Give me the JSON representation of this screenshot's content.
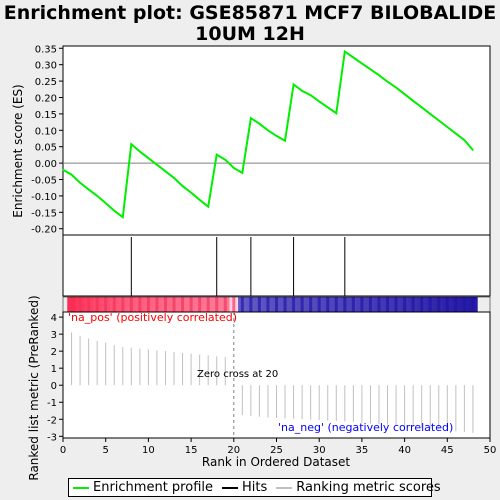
{
  "title": {
    "line1": "Enrichment plot: GSE85871 MCF7 BILOBALIDE",
    "line2": "10UM 12H"
  },
  "colors": {
    "enrichment": "#00ee00",
    "hits": "#000000",
    "ranking": "#c0c0c0",
    "pos_label": "#ff0000",
    "neg_label": "#0000ff",
    "zero_line": "#808080"
  },
  "chart_data": [
    {
      "type": "line",
      "panel": "enrichment-score",
      "ylabel": "Enrichment score (ES)",
      "xlim": [
        0,
        50
      ],
      "ylim": [
        -0.21,
        0.36
      ],
      "yticks": [
        "0.35",
        "0.30",
        "0.25",
        "0.20",
        "0.15",
        "0.10",
        "0.05",
        "0.00",
        "-0.05",
        "-0.10",
        "-0.15",
        "-0.20"
      ],
      "ytick_values": [
        0.35,
        0.3,
        0.25,
        0.2,
        0.15,
        0.1,
        0.05,
        0.0,
        -0.05,
        -0.1,
        -0.15,
        -0.2
      ],
      "series": [
        {
          "name": "Enrichment profile",
          "x": [
            0,
            1,
            2,
            3,
            4,
            5,
            6,
            7,
            8,
            9,
            10,
            11,
            12,
            13,
            14,
            15,
            16,
            17,
            18,
            19,
            20,
            21,
            22,
            23,
            24,
            25,
            26,
            27,
            28,
            29,
            30,
            31,
            32,
            33,
            34,
            35,
            36,
            37,
            38,
            39,
            40,
            41,
            42,
            43,
            44,
            45,
            46,
            47,
            48
          ],
          "values": [
            -0.02,
            -0.035,
            -0.06,
            -0.08,
            -0.1,
            -0.122,
            -0.145,
            -0.165,
            0.058,
            0.035,
            0.015,
            -0.005,
            -0.025,
            -0.045,
            -0.07,
            -0.09,
            -0.112,
            -0.133,
            0.026,
            0.01,
            -0.015,
            -0.03,
            0.137,
            0.12,
            0.1,
            0.083,
            0.068,
            0.24,
            0.22,
            0.207,
            0.188,
            0.17,
            0.152,
            0.34,
            0.322,
            0.304,
            0.286,
            0.268,
            0.248,
            0.23,
            0.21,
            0.19,
            0.17,
            0.15,
            0.13,
            0.11,
            0.09,
            0.07,
            0.04
          ]
        }
      ],
      "hits": [
        8,
        18,
        22,
        27,
        33
      ]
    },
    {
      "type": "bar",
      "panel": "ranked-list-metric",
      "xlabel": "Rank in Ordered Dataset",
      "ylabel": "Ranked list metric (PreRanked)",
      "xlim": [
        0,
        50
      ],
      "ylim": [
        -3.1,
        4.3
      ],
      "xticks": [
        "0",
        "5",
        "10",
        "15",
        "20",
        "25",
        "30",
        "35",
        "40",
        "45",
        "50"
      ],
      "xtick_values": [
        0,
        5,
        10,
        15,
        20,
        25,
        30,
        35,
        40,
        45,
        50
      ],
      "yticks": [
        "4",
        "3",
        "2",
        "1",
        "0",
        "-1",
        "-2",
        "-3"
      ],
      "ytick_values": [
        4,
        3,
        2,
        1,
        0,
        -1,
        -2,
        -3
      ],
      "x": [
        1,
        2,
        3,
        4,
        5,
        6,
        7,
        8,
        9,
        10,
        11,
        12,
        13,
        14,
        15,
        16,
        17,
        18,
        19,
        20,
        21,
        22,
        23,
        24,
        25,
        26,
        27,
        28,
        29,
        30,
        31,
        32,
        33,
        34,
        35,
        36,
        37,
        38,
        39,
        40,
        41,
        42,
        43,
        44,
        45,
        46,
        47,
        48
      ],
      "values": [
        3.1,
        2.9,
        2.75,
        2.6,
        2.5,
        2.35,
        2.25,
        2.2,
        2.15,
        2.1,
        2.05,
        2.0,
        1.95,
        1.9,
        1.85,
        1.8,
        1.75,
        1.7,
        1.65,
        0.05,
        -1.75,
        -1.8,
        -1.85,
        -1.9,
        -1.92,
        -1.95,
        -1.98,
        -2.0,
        -2.02,
        -2.05,
        -2.08,
        -2.1,
        -2.13,
        -2.16,
        -2.2,
        -2.24,
        -2.28,
        -2.32,
        -2.36,
        -2.4,
        -2.45,
        -2.5,
        -2.55,
        -2.6,
        -2.65,
        -2.7,
        -2.75,
        -2.8
      ],
      "zero_cross": 20,
      "annotations": {
        "zero_cross": "Zero cross at 20",
        "pos": "'na_pos' (positively correlated)",
        "neg": "'na_neg' (negatively correlated)"
      }
    }
  ],
  "legend": {
    "items": [
      {
        "label": "Enrichment profile",
        "color": "#00ee00"
      },
      {
        "label": "Hits",
        "color": "#000000"
      },
      {
        "label": "Ranking metric scores",
        "color": "#c0c0c0"
      }
    ]
  }
}
